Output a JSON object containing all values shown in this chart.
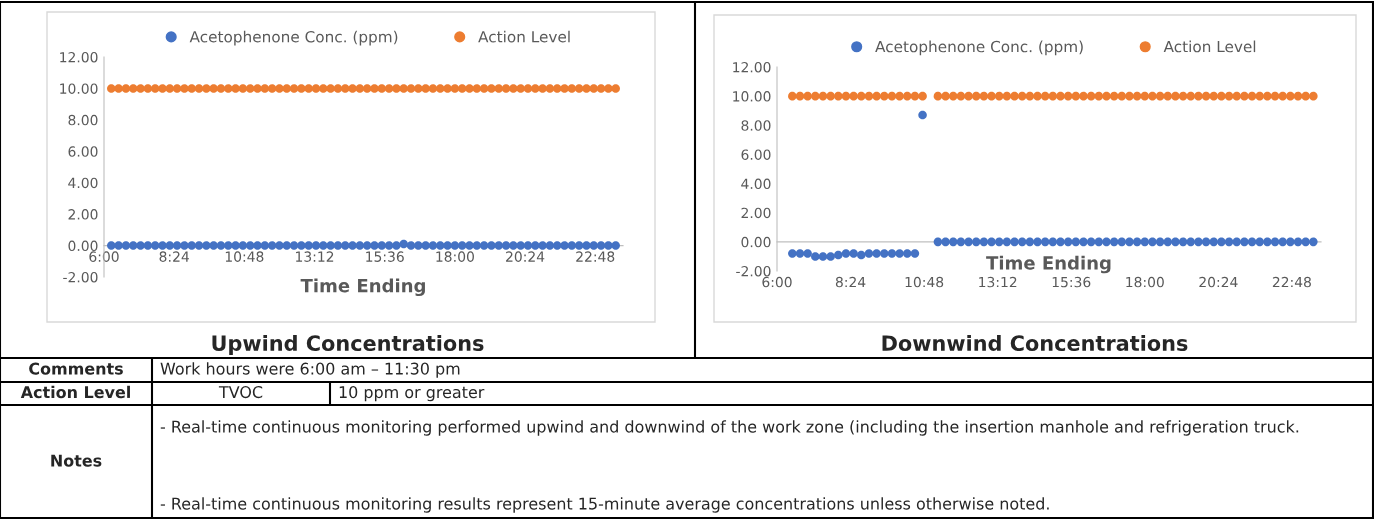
{
  "chart_data": [
    {
      "type": "scatter",
      "title": "Upwind Concentrations",
      "xlabel": "Time Ending",
      "marker": "circle",
      "legend": "top",
      "grid": false,
      "x": [
        6.25,
        6.5,
        6.75,
        7,
        7.25,
        7.5,
        7.75,
        8,
        8.25,
        8.5,
        8.75,
        9,
        9.25,
        9.5,
        9.75,
        10,
        10.25,
        10.5,
        10.75,
        11,
        11.25,
        11.5,
        11.75,
        12,
        12.25,
        12.5,
        12.75,
        13,
        13.25,
        13.5,
        13.75,
        14,
        14.25,
        14.5,
        14.75,
        15,
        15.25,
        15.5,
        15.75,
        16,
        16.25,
        16.5,
        16.75,
        17,
        17.25,
        17.5,
        17.75,
        18,
        18.25,
        18.5,
        18.75,
        19,
        19.25,
        19.5,
        19.75,
        20,
        20.25,
        20.5,
        20.75,
        21,
        21.25,
        21.5,
        21.75,
        22,
        22.25,
        22.5,
        22.75,
        23,
        23.25,
        23.5
      ],
      "series": [
        {
          "name": "Acetophenone Conc. (ppm)",
          "color": "#4472c4",
          "values": [
            0,
            0,
            0,
            0,
            0,
            0,
            0,
            0,
            0,
            0,
            0,
            0,
            0,
            0,
            0,
            0,
            0,
            0,
            0,
            0,
            0,
            0,
            0,
            0,
            0,
            0,
            0,
            0,
            0,
            0,
            0,
            0,
            0,
            0,
            0,
            0,
            0,
            0,
            0,
            0,
            0.1,
            0,
            0,
            0,
            0,
            0,
            0,
            0,
            0,
            0,
            0,
            0,
            0,
            0,
            0,
            0,
            0,
            0,
            0,
            0,
            0,
            0,
            0,
            0,
            0,
            0,
            0,
            0,
            0,
            0
          ]
        },
        {
          "name": "Action Level",
          "color": "#ed7d31",
          "values": [
            10,
            10,
            10,
            10,
            10,
            10,
            10,
            10,
            10,
            10,
            10,
            10,
            10,
            10,
            10,
            10,
            10,
            10,
            10,
            10,
            10,
            10,
            10,
            10,
            10,
            10,
            10,
            10,
            10,
            10,
            10,
            10,
            10,
            10,
            10,
            10,
            10,
            10,
            10,
            10,
            10,
            10,
            10,
            10,
            10,
            10,
            10,
            10,
            10,
            10,
            10,
            10,
            10,
            10,
            10,
            10,
            10,
            10,
            10,
            10,
            10,
            10,
            10,
            10,
            10,
            10,
            10,
            10,
            10,
            10
          ]
        }
      ],
      "xlim": [
        6,
        23.75
      ],
      "xticks": [
        {
          "value": 6,
          "label": "6:00"
        },
        {
          "value": 8.4,
          "label": "8:24"
        },
        {
          "value": 10.8,
          "label": "10:48"
        },
        {
          "value": 13.2,
          "label": "13:12"
        },
        {
          "value": 15.6,
          "label": "15:36"
        },
        {
          "value": 18,
          "label": "18:00"
        },
        {
          "value": 20.4,
          "label": "20:24"
        },
        {
          "value": 22.8,
          "label": "22:48"
        }
      ],
      "ylim": [
        -2,
        12
      ],
      "yticks": [
        {
          "value": -2,
          "label": "-2.00"
        },
        {
          "value": 0,
          "label": "0.00"
        },
        {
          "value": 2,
          "label": "2.00"
        },
        {
          "value": 4,
          "label": "4.00"
        },
        {
          "value": 6,
          "label": "6.00"
        },
        {
          "value": 8,
          "label": "8.00"
        },
        {
          "value": 10,
          "label": "10.00"
        },
        {
          "value": 12,
          "label": "12.00"
        }
      ]
    },
    {
      "type": "scatter",
      "title": "Downwind Concentrations",
      "xlabel": "Time Ending",
      "marker": "circle",
      "legend": "top",
      "grid": false,
      "x": [
        6.5,
        6.75,
        7,
        7.25,
        7.5,
        7.75,
        8,
        8.25,
        8.5,
        8.75,
        9,
        9.25,
        9.5,
        9.75,
        10,
        10.25,
        10.5,
        10.75,
        11,
        11.25,
        11.5,
        11.75,
        12,
        12.25,
        12.5,
        12.75,
        13,
        13.25,
        13.5,
        13.75,
        14,
        14.25,
        14.5,
        14.75,
        15,
        15.25,
        15.5,
        15.75,
        16,
        16.25,
        16.5,
        16.75,
        17,
        17.25,
        17.5,
        17.75,
        18,
        18.25,
        18.5,
        18.75,
        19,
        19.25,
        19.5,
        19.75,
        20,
        20.25,
        20.5,
        20.75,
        21,
        21.25,
        21.5,
        21.75,
        22,
        22.25,
        22.5,
        22.75,
        23,
        23.25,
        23.5
      ],
      "series": [
        {
          "name": "Acetophenone Conc. (ppm)",
          "color": "#4472c4",
          "values": [
            -0.8,
            -0.8,
            -0.8,
            -1.0,
            -1.0,
            -1.0,
            -0.9,
            -0.8,
            -0.8,
            -0.9,
            -0.8,
            -0.8,
            -0.8,
            -0.8,
            -0.8,
            -0.8,
            -0.8,
            8.7,
            null,
            0,
            0,
            0,
            0,
            0,
            0,
            0,
            0,
            0,
            0,
            0,
            0,
            0,
            0,
            0,
            0,
            0,
            0,
            0,
            0,
            0,
            0,
            0,
            0,
            0,
            0,
            0,
            0,
            0,
            0,
            0,
            0,
            0,
            0,
            0,
            0,
            0,
            0,
            0,
            0,
            0,
            0,
            0,
            0,
            0,
            0,
            0,
            0,
            0,
            0
          ]
        },
        {
          "name": "Action Level",
          "color": "#ed7d31",
          "values": [
            10,
            10,
            10,
            10,
            10,
            10,
            10,
            10,
            10,
            10,
            10,
            10,
            10,
            10,
            10,
            10,
            10,
            10,
            null,
            10,
            10,
            10,
            10,
            10,
            10,
            10,
            10,
            10,
            10,
            10,
            10,
            10,
            10,
            10,
            10,
            10,
            10,
            10,
            10,
            10,
            10,
            10,
            10,
            10,
            10,
            10,
            10,
            10,
            10,
            10,
            10,
            10,
            10,
            10,
            10,
            10,
            10,
            10,
            10,
            10,
            10,
            10,
            10,
            10,
            10,
            10,
            10,
            10,
            10
          ]
        }
      ],
      "xlim": [
        6,
        23.75
      ],
      "xticks": [
        {
          "value": 6,
          "label": "6:00"
        },
        {
          "value": 8.4,
          "label": "8:24"
        },
        {
          "value": 10.8,
          "label": "10:48"
        },
        {
          "value": 13.2,
          "label": "13:12"
        },
        {
          "value": 15.6,
          "label": "15:36"
        },
        {
          "value": 18,
          "label": "18:00"
        },
        {
          "value": 20.4,
          "label": "20:24"
        },
        {
          "value": 22.8,
          "label": "22:48"
        }
      ],
      "ylim": [
        -2,
        12
      ],
      "yticks": [
        {
          "value": -2,
          "label": "-2.00"
        },
        {
          "value": 0,
          "label": "0.00"
        },
        {
          "value": 2,
          "label": "2.00"
        },
        {
          "value": 4,
          "label": "4.00"
        },
        {
          "value": 6,
          "label": "6.00"
        },
        {
          "value": 8,
          "label": "8.00"
        },
        {
          "value": 10,
          "label": "10.00"
        },
        {
          "value": 12,
          "label": "12.00"
        }
      ]
    },
    {
      "type": "other",
      "annotations": [
        "Comments",
        "Work hours were 6:00 am – 11:30 pm",
        "Action Level",
        "TVOC",
        "10 ppm or greater",
        "Notes",
        "- Real-time continuous monitoring performed upwind and downwind of the work zone (including the insertion manhole and refrigeration truck.",
        "- Real-time continuous monitoring results represent 15-minute average concentrations unless otherwise noted."
      ]
    }
  ]
}
